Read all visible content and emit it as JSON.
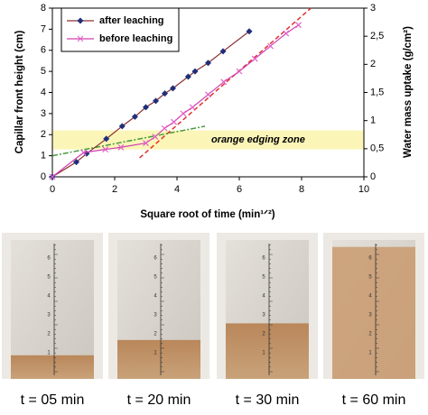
{
  "chart_data": {
    "type": "line",
    "xlabel": "Square root of time (min¹ᐟ²)",
    "ylabel": "Capillar front height (cm)",
    "y2label": "Water mass uptake (g/cm²)",
    "xlim": [
      0,
      10
    ],
    "xticks": [
      0,
      2,
      4,
      6,
      8,
      10
    ],
    "ylim": [
      0,
      8
    ],
    "yticks": [
      0,
      1,
      2,
      3,
      4,
      5,
      6,
      7,
      8
    ],
    "y2lim": [
      0,
      3
    ],
    "y2ticks": [
      0,
      {
        "value": 0.5,
        "label": "0,5"
      },
      1,
      {
        "value": 1.5,
        "label": "1,5"
      },
      2,
      {
        "value": 2.5,
        "label": "2,5"
      },
      3
    ],
    "legend": "upper left",
    "series": [
      {
        "name": "after leaching",
        "color": "#1f2f7a",
        "line_color": "#8b3030",
        "marker": "diamond",
        "x": [
          0,
          0.77,
          1.1,
          1.73,
          2.24,
          2.65,
          3.0,
          3.32,
          3.61,
          3.87,
          4.36,
          4.58,
          5.0,
          5.48,
          6.32
        ],
        "values": [
          0,
          0.7,
          1.1,
          1.8,
          2.4,
          2.85,
          3.3,
          3.6,
          3.95,
          4.2,
          4.75,
          5.0,
          5.4,
          5.95,
          6.9
        ]
      },
      {
        "name": "before leaching",
        "color": "#e060c8",
        "line_color": "#d040b0",
        "marker": "x",
        "x": [
          0,
          1.0,
          1.7,
          2.2,
          3.0,
          3.3,
          3.6,
          3.9,
          4.2,
          4.5,
          5.0,
          5.5,
          6.0,
          6.5,
          7.0,
          7.5,
          7.9
        ],
        "values": [
          0,
          1.15,
          1.3,
          1.4,
          1.6,
          1.9,
          2.3,
          2.6,
          3.0,
          3.3,
          3.9,
          4.5,
          5.0,
          5.6,
          6.2,
          6.8,
          7.2
        ]
      }
    ],
    "trend_lines": [
      {
        "color": "#e03030",
        "dash": "5,3",
        "x": [
          2.8,
          8.3
        ],
        "values": [
          0.9,
          8.0
        ]
      },
      {
        "color": "#4a9a3a",
        "dash": "6,2,2,2",
        "x": [
          0,
          4.9
        ],
        "values": [
          1.0,
          2.4
        ]
      }
    ],
    "band": {
      "ymin": 1.3,
      "ymax": 2.2,
      "color": "#fbf6b8",
      "label": "orange edging zone"
    }
  },
  "photos": {
    "captions": [
      "t = 05 min",
      "t = 20 min",
      "t = 30 min",
      "t = 60 min"
    ],
    "ruler_labels": [
      "1",
      "2",
      "3",
      "4",
      "5",
      "6"
    ]
  }
}
